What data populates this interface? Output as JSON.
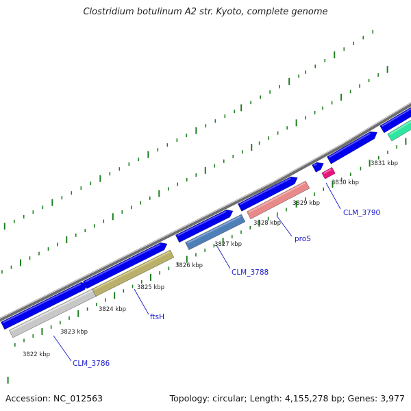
{
  "title": "Clostridium botulinum A2 str. Kyoto, complete genome",
  "footer": {
    "accession": "Accession: NC_012563",
    "stats": "Topology: circular; Length: 4,155,278 bp; Genes: 3,977"
  },
  "colors": {
    "backbone": "#7f7f7f",
    "tick": "#1f7f1f",
    "forward_gene": "#0000ee",
    "label": "#1a1acc"
  },
  "kbp_labels": [
    "3822 kbp",
    "3823 kbp",
    "3824 kbp",
    "3825 kbp",
    "3826 kbp",
    "3827 kbp",
    "3828 kbp",
    "3829 kbp",
    "3830 kbp",
    "3831 kbp"
  ],
  "gene_labels": [
    "CLM_3786",
    "ftsH",
    "CLM_3788",
    "proS",
    "CLM_3790"
  ]
}
